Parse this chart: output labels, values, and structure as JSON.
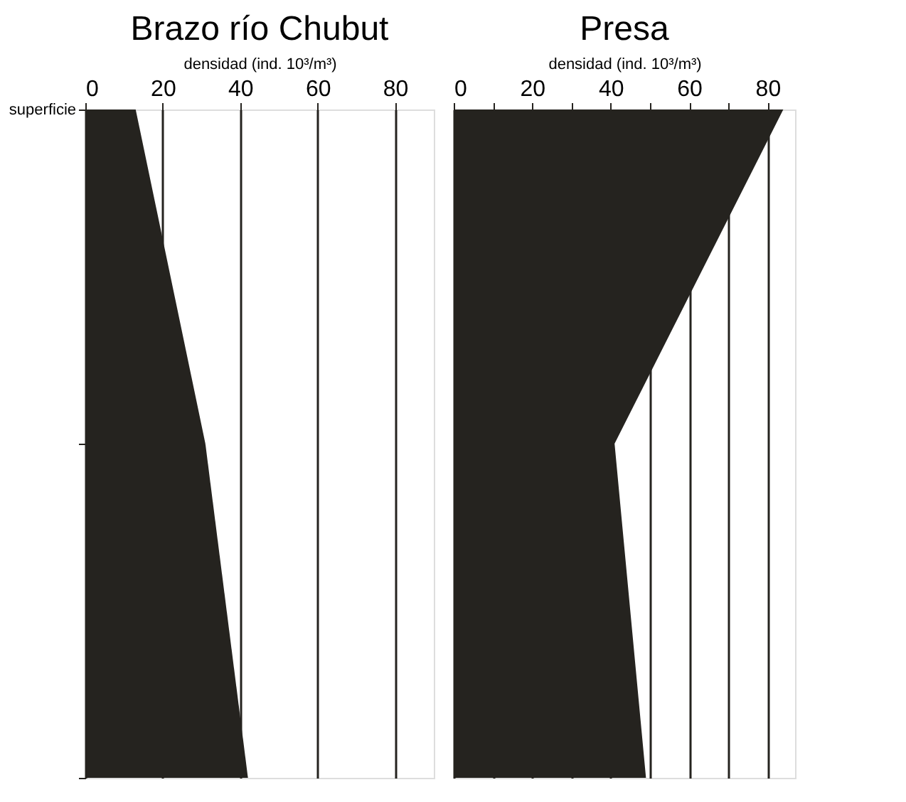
{
  "chart_data": [
    {
      "type": "area",
      "title": "Brazo río Chubut",
      "xlabel": "densidad (ind. 10³/m³)",
      "orientation": "horizontal",
      "categories": [
        "superficie",
        null,
        null
      ],
      "series": [
        {
          "color": "#25231f",
          "values": [
            13,
            31,
            42
          ]
        }
      ],
      "xlim": [
        0,
        90
      ],
      "xticks": [
        0,
        20,
        40,
        60,
        80
      ],
      "grid": "x"
    },
    {
      "type": "area",
      "title": "Presa",
      "xlabel": "densidad (ind. 10³/m³)",
      "orientation": "horizontal",
      "categories": [
        null,
        null,
        null
      ],
      "series": [
        {
          "color": "#25231f",
          "values": [
            84,
            41,
            49
          ]
        }
      ],
      "xlim": [
        0,
        87
      ],
      "xticks": [
        0,
        {
          "value": 10,
          "label": null
        },
        20,
        {
          "value": 30,
          "label": null
        },
        40,
        {
          "value": 50,
          "label": null
        },
        60,
        {
          "value": 70,
          "label": null
        },
        80
      ],
      "tick_labels": "x",
      "grid": "x"
    }
  ]
}
